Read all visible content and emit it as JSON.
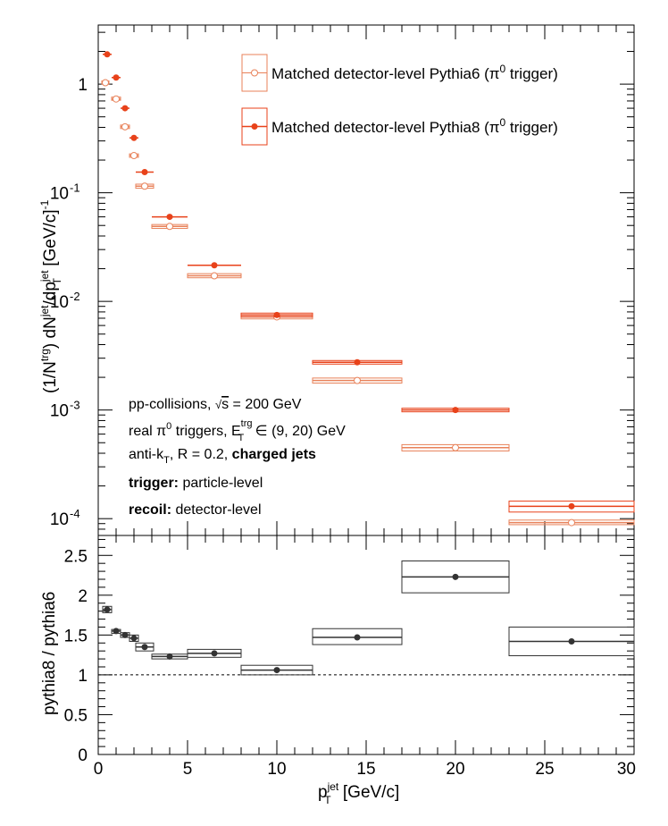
{
  "chart_data": [
    {
      "type": "scatter",
      "yscale": "log",
      "xlim": [
        0,
        30
      ],
      "ylim": [
        7e-05,
        3.5
      ],
      "ylabel": {
        "a": "(1/N",
        "b": "trg",
        "c": ") dN",
        "d": "jet",
        "e": "/dp",
        "f": "jet",
        "g": "T",
        "h": " [GeV/c]",
        "i": "-1"
      },
      "ytick_labels": [
        {
          "v": 1,
          "label": "1"
        },
        {
          "v": 0.1,
          "base": "10",
          "exp": "-1"
        },
        {
          "v": 0.01,
          "base": "10",
          "exp": "-2"
        },
        {
          "v": 0.001,
          "base": "10",
          "exp": "-3"
        },
        {
          "v": 0.0001,
          "base": "10",
          "exp": "-4"
        }
      ],
      "legend": [
        {
          "text": "Matched detector-level Pythia6 (π",
          "sup": "0",
          "tail": " trigger)",
          "color": "#e8825a",
          "marker": "open-circle"
        },
        {
          "text": "Matched detector-level Pythia8 (π",
          "sup": "0",
          "tail": " trigger)",
          "color": "#e8421a",
          "marker": "filled-circle"
        }
      ],
      "series": [
        {
          "name": "Matched detector-level Pythia6 (π⁰ trigger)",
          "color": "#e8825a",
          "marker": "open-circle",
          "points": [
            {
              "x": 0.4,
              "xerr": 0.2,
              "y": 1.03,
              "ylo": 1.0,
              "yhi": 1.07
            },
            {
              "x": 1.0,
              "xerr": 0.25,
              "y": 0.73,
              "ylo": 0.71,
              "yhi": 0.76
            },
            {
              "x": 1.5,
              "xerr": 0.25,
              "y": 0.405,
              "ylo": 0.39,
              "yhi": 0.42
            },
            {
              "x": 2.0,
              "xerr": 0.25,
              "y": 0.22,
              "ylo": 0.212,
              "yhi": 0.228
            },
            {
              "x": 2.6,
              "xerr": 0.5,
              "y": 0.115,
              "ylo": 0.11,
              "yhi": 0.12
            },
            {
              "x": 4.0,
              "xerr": 1.0,
              "y": 0.049,
              "ylo": 0.047,
              "yhi": 0.051
            },
            {
              "x": 6.5,
              "xerr": 1.5,
              "y": 0.0172,
              "ylo": 0.0165,
              "yhi": 0.018
            },
            {
              "x": 10,
              "xerr": 2,
              "y": 0.0072,
              "ylo": 0.0069,
              "yhi": 0.0075
            },
            {
              "x": 14.5,
              "xerr": 2.5,
              "y": 0.00187,
              "ylo": 0.00177,
              "yhi": 0.00197
            },
            {
              "x": 20,
              "xerr": 3,
              "y": 0.00045,
              "ylo": 0.00042,
              "yhi": 0.00048
            },
            {
              "x": 26.5,
              "xerr": 3.5,
              "y": 9.2e-05,
              "ylo": 8.8e-05,
              "yhi": 9.7e-05
            }
          ]
        },
        {
          "name": "Matched detector-level Pythia8 (π⁰ trigger)",
          "color": "#e8421a",
          "marker": "filled-circle",
          "points": [
            {
              "x": 0.5,
              "xerr": 0.25,
              "y": 1.88
            },
            {
              "x": 1.0,
              "xerr": 0.25,
              "y": 1.15
            },
            {
              "x": 1.5,
              "xerr": 0.25,
              "y": 0.6
            },
            {
              "x": 2.0,
              "xerr": 0.25,
              "y": 0.32
            },
            {
              "x": 2.6,
              "xerr": 0.5,
              "y": 0.155
            },
            {
              "x": 4.0,
              "xerr": 1.0,
              "y": 0.06
            },
            {
              "x": 6.5,
              "xerr": 1.5,
              "y": 0.0215
            },
            {
              "x": 10,
              "xerr": 2,
              "y": 0.0075,
              "ylo": 0.0072,
              "yhi": 0.0078
            },
            {
              "x": 14.5,
              "xerr": 2.5,
              "y": 0.00275,
              "ylo": 0.0027,
              "yhi": 0.0028
            },
            {
              "x": 20,
              "xerr": 3,
              "y": 0.001,
              "ylo": 0.00098,
              "yhi": 0.00102
            },
            {
              "x": 26.5,
              "xerr": 3.5,
              "y": 0.00013,
              "ylo": 0.000115,
              "yhi": 0.000145
            }
          ]
        }
      ],
      "annotations": {
        "line1_a": "pp-collisions, ",
        "line1_rad": "s",
        "line1_b": " = 200 GeV",
        "line2_a": "real π",
        "line2_sup0": "0",
        "line2_b": " triggers, E",
        "line2_sup": "trg",
        "line2_sub": "T",
        "line2_c": " ∈ (9, 20) GeV",
        "line3_a": "anti-k",
        "line3_sub": "T",
        "line3_b": ", R = 0.2, ",
        "line3_bold": "charged jets",
        "line4_bold": "trigger:",
        "line4_rest": " particle-level",
        "line5_bold": "recoil:",
        "line5_rest": " detector-level"
      }
    },
    {
      "type": "scatter",
      "xlim": [
        0,
        30
      ],
      "ylim": [
        0,
        2.75
      ],
      "ylabel": "pythia8 / pythia6",
      "xlabel": {
        "a": "p",
        "b": "jet",
        "c": "T",
        "d": " [GeV/c]"
      },
      "xtick_labels": [
        "0",
        "5",
        "10",
        "15",
        "20",
        "25",
        "30"
      ],
      "ytick_labels": [
        "0",
        "0.5",
        "1",
        "1.5",
        "2",
        "2.5"
      ],
      "reference_line": 1,
      "series": [
        {
          "name": "pythia8 / pythia6",
          "color": "#333333",
          "marker": "filled-circle",
          "points": [
            {
              "x": 0.5,
              "xerr": 0.25,
              "y": 1.82,
              "ylo": 1.78,
              "yhi": 1.86
            },
            {
              "x": 1.0,
              "xerr": 0.25,
              "y": 1.55,
              "ylo": 1.52,
              "yhi": 1.57
            },
            {
              "x": 1.5,
              "xerr": 0.25,
              "y": 1.5,
              "ylo": 1.47,
              "yhi": 1.53
            },
            {
              "x": 2.0,
              "xerr": 0.25,
              "y": 1.46,
              "ylo": 1.42,
              "yhi": 1.5
            },
            {
              "x": 2.6,
              "xerr": 0.5,
              "y": 1.35,
              "ylo": 1.3,
              "yhi": 1.4
            },
            {
              "x": 4.0,
              "xerr": 1.0,
              "y": 1.23,
              "ylo": 1.2,
              "yhi": 1.26
            },
            {
              "x": 6.5,
              "xerr": 1.5,
              "y": 1.27,
              "ylo": 1.22,
              "yhi": 1.32
            },
            {
              "x": 10,
              "xerr": 2,
              "y": 1.06,
              "ylo": 1.0,
              "yhi": 1.12
            },
            {
              "x": 14.5,
              "xerr": 2.5,
              "y": 1.47,
              "ylo": 1.38,
              "yhi": 1.58
            },
            {
              "x": 20,
              "xerr": 3,
              "y": 2.23,
              "ylo": 2.03,
              "yhi": 2.43
            },
            {
              "x": 26.5,
              "xerr": 3.5,
              "y": 1.42,
              "ylo": 1.24,
              "yhi": 1.6
            }
          ]
        }
      ]
    }
  ]
}
